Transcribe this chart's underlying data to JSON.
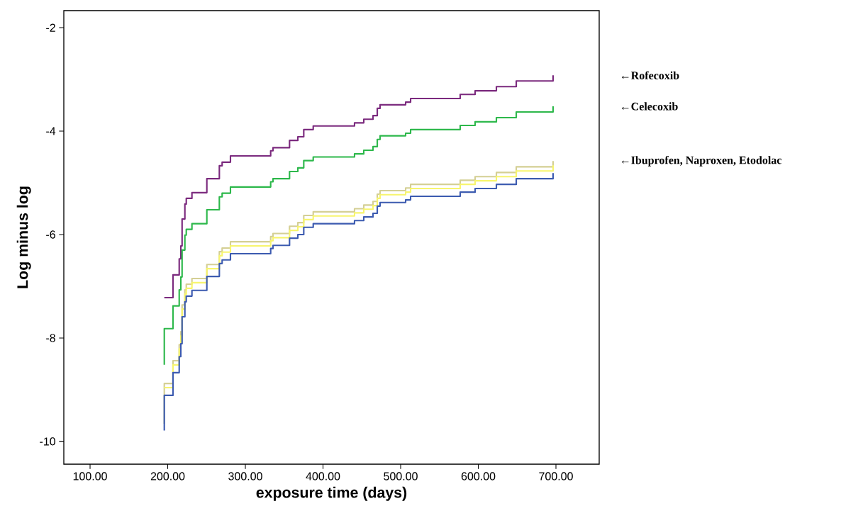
{
  "chart_data": {
    "type": "step",
    "xlabel": "exposure time (days)",
    "ylabel": "Log minus log",
    "x": [
      195.6,
      195.6,
      206.8,
      214.8,
      216.9,
      218.5,
      222.1,
      223.9,
      231.2,
      250.4,
      266.5,
      270.1,
      280.8,
      332.6,
      335.6,
      356.9,
      367.6,
      375.2,
      387.4,
      440.6,
      452.5,
      464.4,
      469.9,
      473.5,
      506.4,
      512.8,
      576.7,
      595.9,
      623.3,
      648.9,
      696.3
    ],
    "series": [
      {
        "name": "←Rofecoxib",
        "color": "#7b2a7e",
        "values": [
          null,
          -7.22,
          -6.78,
          -6.47,
          -6.22,
          -5.7,
          -5.41,
          -5.3,
          -5.19,
          -4.92,
          -4.67,
          -4.6,
          -4.48,
          -4.38,
          -4.32,
          -4.18,
          -4.11,
          -3.97,
          -3.9,
          -3.84,
          -3.77,
          -3.7,
          -3.56,
          -3.49,
          -3.44,
          -3.37,
          -3.29,
          -3.22,
          -3.14,
          -3.03,
          -2.92
        ]
      },
      {
        "name": "←Celecoxib",
        "color": "#2db84b",
        "values": [
          -8.52,
          -7.82,
          -7.38,
          -7.07,
          -6.82,
          -6.3,
          -6.01,
          -5.9,
          -5.79,
          -5.52,
          -5.27,
          -5.2,
          -5.08,
          -4.98,
          -4.92,
          -4.78,
          -4.71,
          -4.57,
          -4.5,
          -4.44,
          -4.37,
          -4.3,
          -4.16,
          -4.09,
          -4.04,
          -3.97,
          -3.89,
          -3.82,
          -3.74,
          -3.63,
          -3.52
        ]
      },
      {
        "name": "←Ibuprofen, Naproxen, Etodolac",
        "color": "#d4cf94",
        "values": [
          -9.66,
          -8.88,
          -8.44,
          -8.13,
          -7.88,
          -7.36,
          -7.07,
          -6.96,
          -6.85,
          -6.58,
          -6.33,
          -6.26,
          -6.14,
          -6.04,
          -5.98,
          -5.84,
          -5.77,
          -5.63,
          -5.56,
          -5.5,
          -5.43,
          -5.36,
          -5.22,
          -5.15,
          -5.1,
          -5.03,
          -4.95,
          -4.88,
          -4.8,
          -4.69,
          -4.58
        ]
      },
      {
        "color": "#f7f56e",
        "values": [
          null,
          -8.96,
          -8.52,
          -8.21,
          -7.96,
          -7.44,
          -7.15,
          -7.04,
          -6.93,
          -6.66,
          -6.41,
          -6.34,
          -6.22,
          -6.12,
          -6.06,
          -5.92,
          -5.85,
          -5.71,
          -5.64,
          -5.58,
          -5.51,
          -5.44,
          -5.3,
          -5.23,
          -5.18,
          -5.11,
          -5.03,
          -4.96,
          -4.88,
          -4.77,
          -4.66
        ]
      },
      {
        "color": "#3c5bb0",
        "values": [
          -9.79,
          -9.11,
          -8.67,
          -8.36,
          -8.11,
          -7.59,
          -7.3,
          -7.19,
          -7.08,
          -6.81,
          -6.56,
          -6.49,
          -6.37,
          -6.27,
          -6.21,
          -6.07,
          -6.0,
          -5.86,
          -5.79,
          -5.73,
          -5.66,
          -5.59,
          -5.45,
          -5.38,
          -5.33,
          -5.26,
          -5.18,
          -5.11,
          -5.03,
          -4.92,
          -4.81
        ]
      }
    ],
    "xlim": [
      66.2,
      755.7
    ],
    "ylim": [
      -10.44,
      -1.67
    ],
    "xticks": [
      {
        "value": 100,
        "label": "100.00"
      },
      {
        "value": 200,
        "label": "200.00"
      },
      {
        "value": 300,
        "label": "300.00"
      },
      {
        "value": 400,
        "label": "400.00"
      },
      {
        "value": 500,
        "label": "500.00"
      },
      {
        "value": 600,
        "label": "600.00"
      },
      {
        "value": 700,
        "label": "700.00"
      }
    ],
    "yticks": [
      -2,
      -4,
      -6,
      -8,
      -10
    ],
    "marker": "none",
    "grid": false,
    "legend": false
  }
}
